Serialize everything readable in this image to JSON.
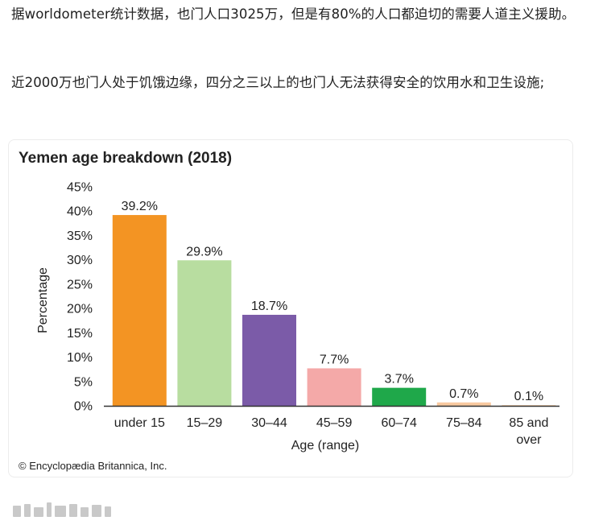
{
  "article": {
    "paragraph_1": "据worldometer统计数据，也门人口3025万，但是有80%的人口都迫切的需要人道主义援助。",
    "paragraph_2": "近2000万也门人处于饥饿边缘，四分之三以上的也门人无法获得安全的饮用水和卫生设施;"
  },
  "chart_data": {
    "type": "bar",
    "title": "Yemen age breakdown (2018)",
    "xlabel": "Age (range)",
    "ylabel": "Percentage",
    "categories": [
      "under 15",
      "15–29",
      "30–44",
      "45–59",
      "60–74",
      "75–84",
      "85 and over"
    ],
    "values": [
      39.2,
      29.9,
      18.7,
      7.7,
      3.7,
      0.7,
      0.1
    ],
    "value_labels": [
      "39.2%",
      "29.9%",
      "18.7%",
      "7.7%",
      "3.7%",
      "0.7%",
      "0.1%"
    ],
    "colors": [
      "#F39423",
      "#B8DDA0",
      "#7B5BA8",
      "#F4A9A8",
      "#1FA84A",
      "#F8C9A0",
      "#F8C9A0"
    ],
    "ylim": [
      0,
      45
    ],
    "yticks": [
      0,
      5,
      10,
      15,
      20,
      25,
      30,
      35,
      40,
      45
    ],
    "ytick_labels": [
      "0%",
      "5%",
      "10%",
      "15%",
      "20%",
      "25%",
      "30%",
      "35%",
      "40%",
      "45%"
    ],
    "grid": false,
    "legend": "none",
    "credit": "© Encyclopædia Britannica, Inc."
  }
}
